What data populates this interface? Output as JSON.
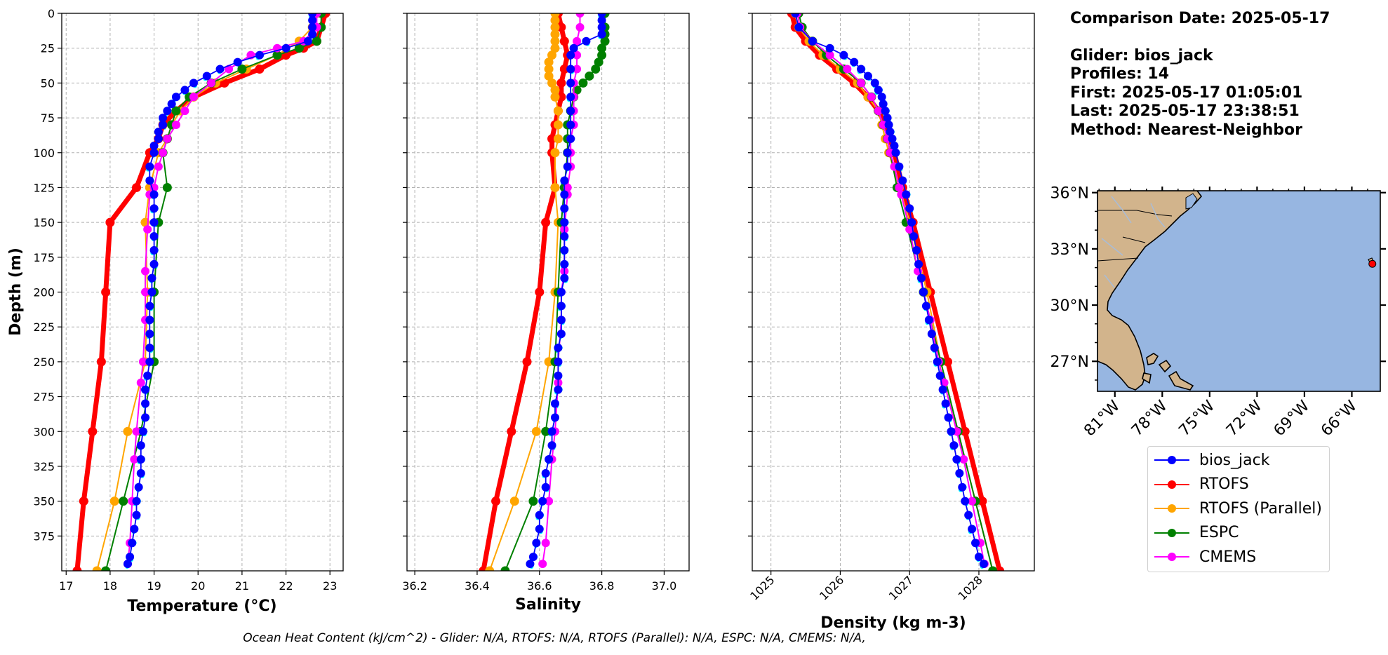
{
  "info": {
    "comparison_date": "Comparison Date: 2025-05-17",
    "glider": "Glider: bios_jack",
    "profiles": "Profiles: 14",
    "first": "First: 2025-05-17 01:05:01",
    "last": "Last: 2025-05-17 23:38:51",
    "method": "Method: Nearest-Neighbor"
  },
  "footer": "Ocean Heat Content (kJ/cm^2) - Glider: N/A,  RTOFS: N/A,  RTOFS (Parallel): N/A,  ESPC: N/A,  CMEMS: N/A,",
  "colors": {
    "bios_jack": "#0000ff",
    "bios_jack_raw": "#00ffff",
    "RTOFS": "#ff0000",
    "RTOFS (Parallel)": "#ffa500",
    "ESPC": "#008000",
    "CMEMS": "#ff00ff",
    "land": "#d2b48c",
    "ocean": "#97b6e1"
  },
  "legend": {
    "placement": "below-map",
    "entries": [
      "bios_jack",
      "RTOFS",
      "RTOFS (Parallel)",
      "ESPC",
      "CMEMS"
    ]
  },
  "chart_data": [
    {
      "type": "line",
      "xlabel": "Temperature (°C)",
      "ylabel": "Depth (m)",
      "xlim": [
        16.9,
        23.3
      ],
      "ylim": [
        400,
        0
      ],
      "xticks": [
        17,
        18,
        19,
        20,
        21,
        22,
        23
      ],
      "yticks": [
        0,
        25,
        50,
        75,
        100,
        125,
        150,
        175,
        200,
        225,
        250,
        275,
        300,
        325,
        350,
        375
      ],
      "grid": true,
      "series": [
        {
          "name": "bios_jack",
          "depth": [
            0,
            5,
            10,
            15,
            20,
            25,
            30,
            35,
            40,
            45,
            50,
            55,
            60,
            65,
            70,
            75,
            80,
            85,
            90,
            95,
            100,
            110,
            120,
            130,
            140,
            150,
            160,
            170,
            180,
            190,
            200,
            210,
            220,
            230,
            240,
            250,
            260,
            270,
            280,
            290,
            300,
            310,
            320,
            330,
            340,
            350,
            360,
            370,
            380,
            390,
            395
          ],
          "values": [
            22.6,
            22.6,
            22.6,
            22.6,
            22.5,
            22.0,
            21.4,
            20.9,
            20.5,
            20.2,
            19.9,
            19.7,
            19.5,
            19.4,
            19.3,
            19.2,
            19.2,
            19.1,
            19.1,
            19.0,
            19.0,
            18.9,
            18.9,
            19.0,
            19.0,
            19.0,
            19.0,
            19.0,
            19.0,
            18.95,
            18.95,
            18.9,
            18.9,
            18.9,
            18.9,
            18.9,
            18.85,
            18.8,
            18.8,
            18.8,
            18.75,
            18.7,
            18.7,
            18.7,
            18.65,
            18.6,
            18.6,
            18.55,
            18.5,
            18.45,
            18.4
          ]
        },
        {
          "name": "RTOFS",
          "depth": [
            0,
            10,
            20,
            25,
            30,
            40,
            50,
            60,
            70,
            80,
            90,
            100,
            125,
            150,
            200,
            250,
            300,
            350,
            400
          ],
          "values": [
            22.9,
            22.8,
            22.7,
            22.4,
            22.0,
            21.4,
            20.6,
            19.9,
            19.5,
            19.2,
            19.1,
            18.9,
            18.6,
            18.0,
            17.9,
            17.8,
            17.6,
            17.4,
            17.25
          ]
        },
        {
          "name": "RTOFS (Parallel)",
          "depth": [
            0,
            10,
            20,
            30,
            40,
            50,
            60,
            70,
            80,
            90,
            100,
            125,
            150,
            200,
            250,
            300,
            350,
            400
          ],
          "values": [
            22.7,
            22.6,
            22.3,
            21.8,
            21.1,
            20.4,
            19.9,
            19.6,
            19.4,
            19.3,
            19.1,
            18.9,
            18.8,
            18.85,
            18.8,
            18.4,
            18.1,
            17.7
          ]
        },
        {
          "name": "ESPC",
          "depth": [
            0,
            10,
            20,
            25,
            30,
            40,
            50,
            60,
            70,
            80,
            90,
            100,
            125,
            150,
            200,
            250,
            300,
            350,
            400
          ],
          "values": [
            22.8,
            22.8,
            22.7,
            22.3,
            21.8,
            21.0,
            20.3,
            19.8,
            19.5,
            19.4,
            19.3,
            19.2,
            19.3,
            19.1,
            19.0,
            19.0,
            18.7,
            18.3,
            17.9
          ]
        },
        {
          "name": "CMEMS",
          "depth": [
            0,
            10,
            20,
            25,
            30,
            40,
            50,
            60,
            70,
            80,
            90,
            100,
            110,
            125,
            130,
            155,
            185,
            200,
            220,
            250,
            265,
            300,
            320,
            350,
            380,
            395
          ],
          "values": [
            22.7,
            22.7,
            22.4,
            21.8,
            21.2,
            20.7,
            20.3,
            19.9,
            19.7,
            19.5,
            19.3,
            19.2,
            19.1,
            19.0,
            18.9,
            18.85,
            18.8,
            18.8,
            18.8,
            18.75,
            18.7,
            18.6,
            18.55,
            18.5,
            18.45,
            18.4
          ]
        }
      ]
    },
    {
      "type": "line",
      "xlabel": "Salinity",
      "ylabel": "",
      "xlim": [
        36.175,
        37.08
      ],
      "ylim": [
        400,
        0
      ],
      "xticks": [
        36.2,
        36.4,
        36.6,
        36.8,
        37.0
      ],
      "grid": true,
      "series": [
        {
          "name": "bios_jack",
          "depth": [
            0,
            5,
            10,
            15,
            20,
            25,
            30,
            40,
            50,
            60,
            70,
            80,
            90,
            100,
            110,
            120,
            130,
            140,
            150,
            160,
            170,
            180,
            190,
            200,
            210,
            220,
            230,
            240,
            250,
            260,
            270,
            280,
            290,
            300,
            310,
            320,
            330,
            340,
            350,
            360,
            370,
            380,
            390,
            395
          ],
          "values": [
            36.8,
            36.8,
            36.8,
            36.8,
            36.75,
            36.71,
            36.7,
            36.7,
            36.7,
            36.7,
            36.7,
            36.7,
            36.7,
            36.69,
            36.69,
            36.68,
            36.68,
            36.68,
            36.68,
            36.68,
            36.68,
            36.68,
            36.68,
            36.67,
            36.67,
            36.67,
            36.67,
            36.66,
            36.66,
            36.66,
            36.66,
            36.65,
            36.65,
            36.64,
            36.64,
            36.63,
            36.62,
            36.62,
            36.61,
            36.6,
            36.6,
            36.59,
            36.58,
            36.57
          ]
        },
        {
          "name": "RTOFS",
          "depth": [
            0,
            10,
            20,
            30,
            40,
            50,
            60,
            70,
            80,
            90,
            100,
            125,
            150,
            200,
            250,
            300,
            350,
            400
          ],
          "values": [
            36.66,
            36.67,
            36.68,
            36.69,
            36.68,
            36.67,
            36.67,
            36.66,
            36.65,
            36.64,
            36.64,
            36.65,
            36.62,
            36.6,
            36.56,
            36.51,
            36.46,
            36.42
          ]
        },
        {
          "name": "RTOFS (Parallel)",
          "depth": [
            0,
            5,
            10,
            15,
            20,
            25,
            30,
            35,
            40,
            45,
            50,
            55,
            60,
            70,
            80,
            90,
            100,
            125,
            150,
            200,
            250,
            300,
            350,
            400
          ],
          "values": [
            36.65,
            36.65,
            36.65,
            36.65,
            36.65,
            36.65,
            36.64,
            36.63,
            36.63,
            36.63,
            36.64,
            36.65,
            36.65,
            36.66,
            36.66,
            36.66,
            36.65,
            36.65,
            36.66,
            36.65,
            36.63,
            36.59,
            36.52,
            36.44
          ]
        },
        {
          "name": "ESPC",
          "depth": [
            0,
            10,
            15,
            20,
            25,
            30,
            35,
            40,
            45,
            50,
            55,
            60,
            70,
            80,
            90,
            100,
            125,
            150,
            200,
            250,
            300,
            350,
            400
          ],
          "values": [
            36.81,
            36.81,
            36.81,
            36.81,
            36.8,
            36.8,
            36.79,
            36.78,
            36.76,
            36.74,
            36.72,
            36.71,
            36.7,
            36.69,
            36.69,
            36.69,
            36.68,
            36.67,
            36.66,
            36.65,
            36.62,
            36.58,
            36.49
          ]
        },
        {
          "name": "CMEMS",
          "depth": [
            0,
            10,
            20,
            30,
            40,
            50,
            60,
            70,
            80,
            90,
            100,
            110,
            125,
            130,
            155,
            185,
            200,
            220,
            250,
            265,
            300,
            320,
            350,
            380,
            395
          ],
          "values": [
            36.73,
            36.73,
            36.72,
            36.72,
            36.72,
            36.71,
            36.71,
            36.71,
            36.71,
            36.7,
            36.7,
            36.7,
            36.69,
            36.69,
            36.68,
            36.68,
            36.67,
            36.67,
            36.66,
            36.66,
            36.65,
            36.64,
            36.63,
            36.62,
            36.61
          ]
        }
      ]
    },
    {
      "type": "line",
      "xlabel": "Density (kg m-3)",
      "ylabel": "",
      "xlim": [
        1024.73,
        1028.8
      ],
      "ylim": [
        400,
        0
      ],
      "xticks": [
        1025,
        1026,
        1027,
        1028
      ],
      "grid": true,
      "series": [
        {
          "name": "bios_jack",
          "depth": [
            0,
            10,
            20,
            25,
            30,
            35,
            40,
            45,
            50,
            55,
            60,
            65,
            70,
            75,
            80,
            85,
            90,
            95,
            100,
            110,
            120,
            130,
            140,
            150,
            160,
            170,
            180,
            190,
            200,
            210,
            220,
            230,
            240,
            250,
            260,
            270,
            280,
            290,
            300,
            310,
            320,
            330,
            340,
            350,
            360,
            370,
            380,
            390,
            395
          ],
          "values": [
            1025.35,
            1025.4,
            1025.6,
            1025.85,
            1026.05,
            1026.2,
            1026.3,
            1026.4,
            1026.5,
            1026.55,
            1026.6,
            1026.62,
            1026.65,
            1026.68,
            1026.7,
            1026.72,
            1026.75,
            1026.78,
            1026.8,
            1026.85,
            1026.9,
            1026.95,
            1027.0,
            1027.03,
            1027.06,
            1027.1,
            1027.13,
            1027.17,
            1027.2,
            1027.24,
            1027.28,
            1027.32,
            1027.36,
            1027.4,
            1027.44,
            1027.48,
            1027.52,
            1027.56,
            1027.6,
            1027.64,
            1027.68,
            1027.72,
            1027.76,
            1027.8,
            1027.85,
            1027.9,
            1027.95,
            1028.0,
            1028.07
          ]
        },
        {
          "name": "RTOFS",
          "depth": [
            0,
            10,
            20,
            30,
            40,
            50,
            60,
            70,
            80,
            90,
            100,
            125,
            150,
            200,
            250,
            300,
            350,
            400
          ],
          "values": [
            1025.3,
            1025.35,
            1025.5,
            1025.7,
            1025.95,
            1026.2,
            1026.4,
            1026.55,
            1026.65,
            1026.72,
            1026.78,
            1026.9,
            1027.05,
            1027.3,
            1027.55,
            1027.8,
            1028.05,
            1028.3
          ]
        },
        {
          "name": "RTOFS (Parallel)",
          "depth": [
            0,
            10,
            20,
            30,
            40,
            50,
            60,
            70,
            80,
            90,
            100,
            125,
            150,
            200,
            250,
            300,
            350,
            400
          ],
          "values": [
            1025.35,
            1025.4,
            1025.55,
            1025.75,
            1026.0,
            1026.25,
            1026.4,
            1026.55,
            1026.6,
            1026.65,
            1026.7,
            1026.85,
            1027.0,
            1027.25,
            1027.45,
            1027.7,
            1027.95,
            1028.2
          ]
        },
        {
          "name": "ESPC",
          "depth": [
            0,
            10,
            20,
            30,
            40,
            50,
            60,
            70,
            80,
            90,
            100,
            125,
            150,
            200,
            250,
            300,
            350,
            400
          ],
          "values": [
            1025.4,
            1025.45,
            1025.6,
            1025.8,
            1026.05,
            1026.3,
            1026.45,
            1026.55,
            1026.62,
            1026.68,
            1026.72,
            1026.82,
            1026.95,
            1027.2,
            1027.45,
            1027.7,
            1027.95,
            1028.2
          ]
        },
        {
          "name": "CMEMS",
          "depth": [
            0,
            10,
            20,
            30,
            40,
            50,
            60,
            70,
            80,
            90,
            100,
            110,
            125,
            130,
            155,
            185,
            200,
            220,
            250,
            265,
            300,
            320,
            350,
            380,
            395
          ],
          "values": [
            1025.38,
            1025.42,
            1025.6,
            1025.85,
            1026.1,
            1026.3,
            1026.45,
            1026.55,
            1026.62,
            1026.68,
            1026.72,
            1026.78,
            1026.85,
            1026.88,
            1027.0,
            1027.12,
            1027.2,
            1027.3,
            1027.42,
            1027.5,
            1027.68,
            1027.78,
            1027.9,
            1028.02,
            1028.08
          ]
        }
      ]
    }
  ],
  "map": {
    "lon_ticks": [
      "81°W",
      "78°W",
      "75°W",
      "72°W",
      "69°W",
      "66°W"
    ],
    "lat_ticks": [
      "36°N",
      "33°N",
      "30°N",
      "27°N"
    ],
    "lon_values": [
      -81,
      -78,
      -75,
      -72,
      -69,
      -66
    ],
    "lat_values": [
      36,
      33,
      30,
      27
    ],
    "extent": [
      -82.1,
      -64.2,
      25.4,
      36.1
    ],
    "glider_position": {
      "lon": -64.7,
      "lat": 32.2
    }
  }
}
